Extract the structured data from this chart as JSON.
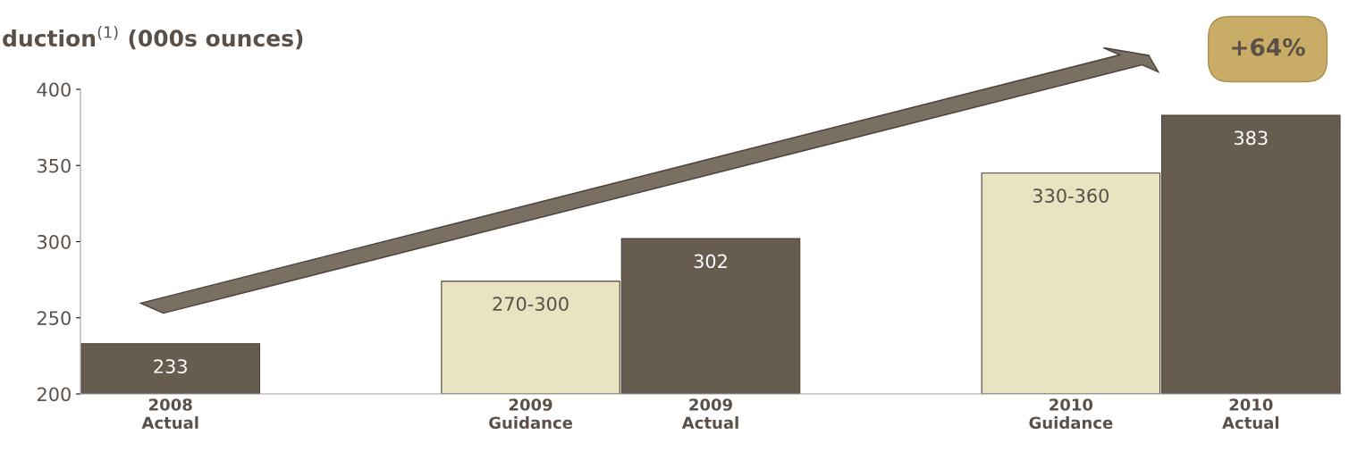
{
  "chart_data": {
    "type": "bar",
    "title": "duction$^{(1)}$ (000s ounces)",
    "categories": [
      "2008\nActual",
      null,
      "2009\nGuidance",
      "2009\nActual",
      null,
      "2010\nGuidance",
      "2010\nActual"
    ],
    "values": [
      233,
      null,
      274,
      302,
      null,
      345,
      383
    ],
    "colors": [
      "#675c50",
      null,
      "#e8e3c0",
      "#675c50",
      null,
      "#e8e3c0",
      "#675c50"
    ],
    "value_labels": [
      "233",
      null,
      "270-300",
      "302",
      null,
      "330-360",
      "383"
    ],
    "ylim": [
      200,
      400
    ],
    "yticks": [
      200,
      250,
      300,
      350,
      400
    ],
    "grid": false,
    "legend": false,
    "annotations": [
      "+64%"
    ]
  }
}
